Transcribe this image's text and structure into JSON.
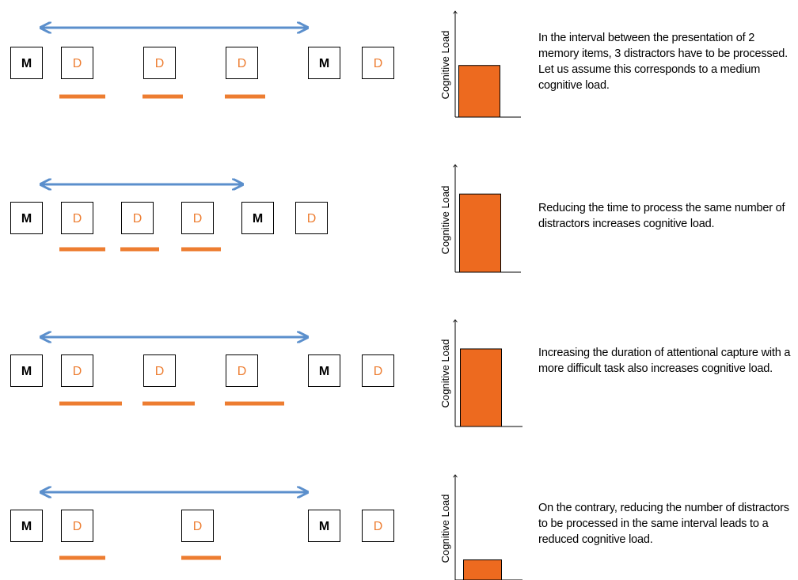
{
  "colors": {
    "arrow": "#5B8FCC",
    "distractor": "#ED7D31",
    "bar_fill": "#ED6A1F",
    "memory": "#000000",
    "box_border": "#000000"
  },
  "labels": {
    "memory_item": "M",
    "distractor_item": "D",
    "y_axis": "Cognitive Load"
  },
  "rows": [
    {
      "sequence": [
        "M",
        "D",
        "D",
        "D",
        "M",
        "D"
      ],
      "description": "In the interval between the presentation of 2 memory items, 3 distractors have to be processed. Let us assume this corresponds to a medium cognitive load."
    },
    {
      "sequence": [
        "M",
        "D",
        "D",
        "D",
        "M",
        "D"
      ],
      "description": "Reducing the time to process the same number of distractors increases cognitive load."
    },
    {
      "sequence": [
        "M",
        "D",
        "D",
        "D",
        "M",
        "D"
      ],
      "description": "Increasing the duration of attentional capture with a more difficult task also increases cognitive load."
    },
    {
      "sequence": [
        "M",
        "D",
        "D",
        "M",
        "D"
      ],
      "description": "On the contrary, reducing the number of distractors to be processed in the same interval leads to a reduced cognitive load."
    }
  ],
  "chart_data": [
    {
      "type": "bar",
      "ylabel": "Cognitive Load",
      "values": [
        0.51
      ]
    },
    {
      "type": "bar",
      "ylabel": "Cognitive Load",
      "values": [
        0.76
      ]
    },
    {
      "type": "bar",
      "ylabel": "Cognitive Load",
      "values": [
        0.76
      ]
    },
    {
      "type": "bar",
      "ylabel": "Cognitive Load",
      "values": [
        0.2
      ]
    }
  ]
}
